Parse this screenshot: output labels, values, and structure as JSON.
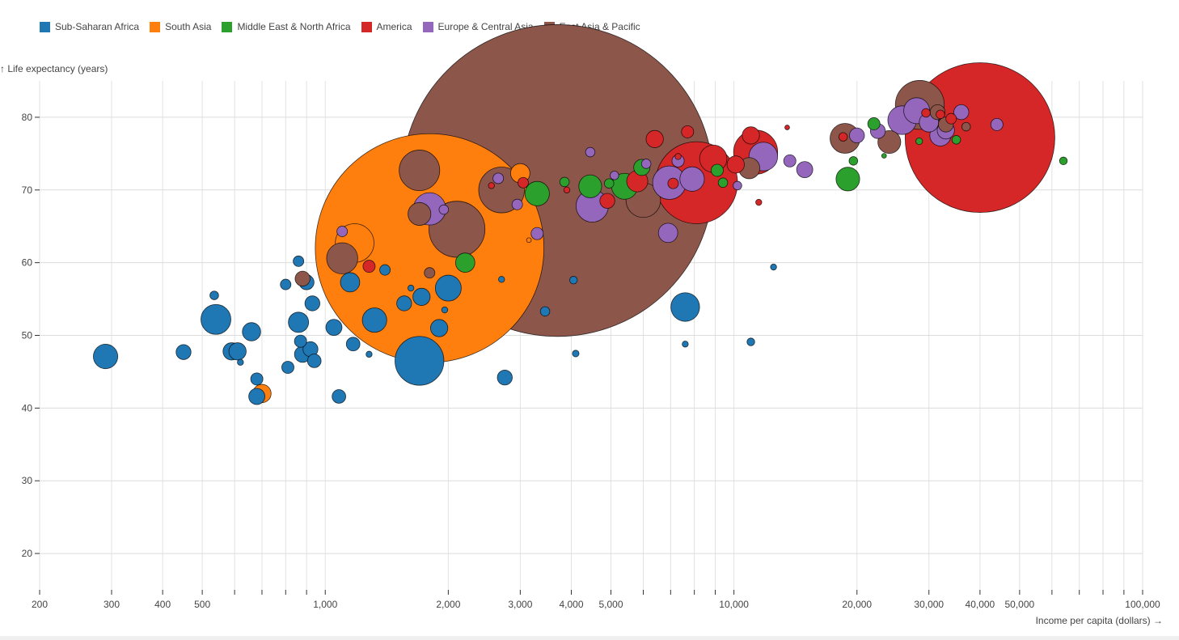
{
  "legend": [
    {
      "name": "Sub-Saharan Africa",
      "color": "#1f77b4"
    },
    {
      "name": "South Asia",
      "color": "#ff7f0e"
    },
    {
      "name": "Middle East & North Africa",
      "color": "#2ca02c"
    },
    {
      "name": "America",
      "color": "#d62728"
    },
    {
      "name": "Europe & Central Asia",
      "color": "#9467bd"
    },
    {
      "name": "East Asia & Pacific",
      "color": "#8c564b"
    }
  ],
  "chart_data": {
    "type": "scatter",
    "xscale": "log",
    "xlabel": "Income per capita (dollars) →",
    "ylabel": "↑ Life expectancy (years)",
    "xlim": [
      200,
      100000
    ],
    "ylim": [
      15,
      85
    ],
    "yticks": [
      "20",
      "30",
      "40",
      "50",
      "60",
      "70",
      "80"
    ],
    "xticks": [
      "200",
      "300",
      "400",
      "500",
      "1,000",
      "2,000",
      "3,000",
      "4,000",
      "5,000",
      "10,000",
      "20,000",
      "30,000",
      "40,000",
      "50,000",
      "100,000"
    ],
    "grid": true,
    "legend_position": "top-left",
    "series": [
      {
        "name": "Sub-Saharan Africa",
        "color": "#1f77b4",
        "points": [
          [
            290,
            47.1,
            0.8
          ],
          [
            450,
            47.7,
            0.3
          ],
          [
            535,
            55.5,
            0.1
          ],
          [
            540,
            52.2,
            1.2
          ],
          [
            590,
            47.8,
            0.4
          ],
          [
            610,
            47.8,
            0.4
          ],
          [
            620,
            46.3,
            0.05
          ],
          [
            660,
            50.5,
            0.45
          ],
          [
            680,
            44.0,
            0.2
          ],
          [
            680,
            41.6,
            0.35
          ],
          [
            800,
            57.0,
            0.15
          ],
          [
            810,
            45.6,
            0.2
          ],
          [
            860,
            60.2,
            0.15
          ],
          [
            860,
            51.8,
            0.55
          ],
          [
            870,
            49.2,
            0.2
          ],
          [
            880,
            47.4,
            0.35
          ],
          [
            900,
            57.3,
            0.3
          ],
          [
            920,
            48.1,
            0.3
          ],
          [
            930,
            54.4,
            0.3
          ],
          [
            940,
            46.5,
            0.25
          ],
          [
            1050,
            51.1,
            0.35
          ],
          [
            1080,
            41.6,
            0.25
          ],
          [
            1150,
            57.3,
            0.5
          ],
          [
            1170,
            48.8,
            0.25
          ],
          [
            1280,
            47.4,
            0.05
          ],
          [
            1320,
            52.1,
            0.8
          ],
          [
            1400,
            59.0,
            0.15
          ],
          [
            1560,
            54.4,
            0.3
          ],
          [
            1620,
            56.5,
            0.05
          ],
          [
            1700,
            46.5,
            3.2
          ],
          [
            1720,
            55.3,
            0.4
          ],
          [
            1900,
            51.0,
            0.4
          ],
          [
            1960,
            53.5,
            0.05
          ],
          [
            2000,
            56.5,
            0.9
          ],
          [
            2700,
            57.7,
            0.05
          ],
          [
            2750,
            44.2,
            0.3
          ],
          [
            3450,
            53.3,
            0.12
          ],
          [
            4050,
            57.6,
            0.08
          ],
          [
            4100,
            47.5,
            0.06
          ],
          [
            7600,
            53.9,
            1.1
          ],
          [
            7600,
            48.8,
            0.05
          ],
          [
            11000,
            49.1,
            0.08
          ],
          [
            12500,
            59.4,
            0.05
          ]
        ]
      },
      {
        "name": "South Asia",
        "color": "#ff7f0e",
        "points": [
          [
            700,
            42.0,
            0.45
          ],
          [
            1180,
            62.7,
            2.0
          ],
          [
            1800,
            62.0,
            70.0
          ],
          [
            3000,
            72.3,
            0.5
          ],
          [
            3150,
            63.1,
            0.03
          ]
        ]
      },
      {
        "name": "Middle East & North Africa",
        "color": "#2ca02c",
        "points": [
          [
            2200,
            60.0,
            0.5
          ],
          [
            3300,
            69.5,
            0.8
          ],
          [
            3850,
            71.1,
            0.12
          ],
          [
            4450,
            70.5,
            0.7
          ],
          [
            4950,
            70.9,
            0.12
          ],
          [
            5400,
            70.5,
            0.9
          ],
          [
            5950,
            73.1,
            0.35
          ],
          [
            9100,
            72.7,
            0.2
          ],
          [
            9400,
            71.0,
            0.12
          ],
          [
            19000,
            71.5,
            0.75
          ],
          [
            19600,
            74.0,
            0.1
          ],
          [
            22000,
            79.1,
            0.2
          ],
          [
            23300,
            74.7,
            0.03
          ],
          [
            28400,
            76.7,
            0.06
          ],
          [
            35000,
            76.9,
            0.1
          ],
          [
            64000,
            74.0,
            0.08
          ]
        ]
      },
      {
        "name": "America",
        "color": "#d62728",
        "points": [
          [
            1280,
            59.5,
            0.2
          ],
          [
            2550,
            70.6,
            0.05
          ],
          [
            3050,
            71.0,
            0.15
          ],
          [
            3900,
            70.0,
            0.05
          ],
          [
            4900,
            68.5,
            0.3
          ],
          [
            5800,
            71.2,
            0.6
          ],
          [
            6400,
            77.0,
            0.4
          ],
          [
            7100,
            70.9,
            0.15
          ],
          [
            7300,
            74.6,
            0.05
          ],
          [
            7700,
            78.0,
            0.2
          ],
          [
            8100,
            71.0,
            9.0
          ],
          [
            8900,
            74.3,
            1.0
          ],
          [
            10100,
            73.5,
            0.4
          ],
          [
            11000,
            77.5,
            0.4
          ],
          [
            11300,
            75.2,
            2.6
          ],
          [
            11500,
            68.3,
            0.05
          ],
          [
            13500,
            78.6,
            0.03
          ],
          [
            18500,
            77.3,
            0.1
          ],
          [
            29500,
            80.6,
            0.1
          ],
          [
            32000,
            80.4,
            0.1
          ],
          [
            34000,
            79.8,
            0.15
          ],
          [
            40000,
            77.2,
            30.0
          ]
        ]
      },
      {
        "name": "Europe & Central Asia",
        "color": "#9467bd",
        "points": [
          [
            1100,
            64.3,
            0.15
          ],
          [
            1800,
            67.4,
            1.4
          ],
          [
            1950,
            67.3,
            0.12
          ],
          [
            2650,
            71.6,
            0.15
          ],
          [
            2950,
            68.0,
            0.15
          ],
          [
            3300,
            64.0,
            0.2
          ],
          [
            4450,
            75.2,
            0.12
          ],
          [
            4500,
            67.8,
            1.4
          ],
          [
            5100,
            72.0,
            0.1
          ],
          [
            6100,
            73.6,
            0.12
          ],
          [
            6900,
            64.1,
            0.5
          ],
          [
            6950,
            71.0,
            1.5
          ],
          [
            7300,
            74.0,
            0.2
          ],
          [
            7900,
            71.5,
            0.8
          ],
          [
            10200,
            70.6,
            0.1
          ],
          [
            11800,
            74.6,
            1.1
          ],
          [
            13700,
            74.0,
            0.2
          ],
          [
            14900,
            72.8,
            0.35
          ],
          [
            20000,
            77.5,
            0.3
          ],
          [
            22500,
            78.1,
            0.3
          ],
          [
            25800,
            79.6,
            1.1
          ],
          [
            28000,
            80.9,
            0.9
          ],
          [
            30000,
            79.3,
            0.5
          ],
          [
            32000,
            77.5,
            0.6
          ],
          [
            33000,
            78.2,
            0.4
          ],
          [
            36000,
            80.7,
            0.3
          ],
          [
            44000,
            79.0,
            0.2
          ]
        ]
      },
      {
        "name": "East Asia & Pacific",
        "color": "#8c564b",
        "points": [
          [
            880,
            57.8,
            0.3
          ],
          [
            1100,
            60.6,
            1.3
          ],
          [
            1700,
            72.7,
            2.2
          ],
          [
            1700,
            66.7,
            0.7
          ],
          [
            1800,
            58.6,
            0.15
          ],
          [
            2100,
            64.6,
            4.2
          ],
          [
            2700,
            70.0,
            2.8
          ],
          [
            3700,
            71.3,
            130.0
          ],
          [
            6000,
            68.6,
            1.6
          ],
          [
            10900,
            73.0,
            0.6
          ],
          [
            18700,
            77.1,
            1.2
          ],
          [
            24000,
            76.6,
            0.7
          ],
          [
            28500,
            81.7,
            3.2
          ],
          [
            31500,
            80.7,
            0.3
          ],
          [
            33000,
            79.0,
            0.3
          ],
          [
            37000,
            78.7,
            0.1
          ]
        ]
      }
    ]
  }
}
